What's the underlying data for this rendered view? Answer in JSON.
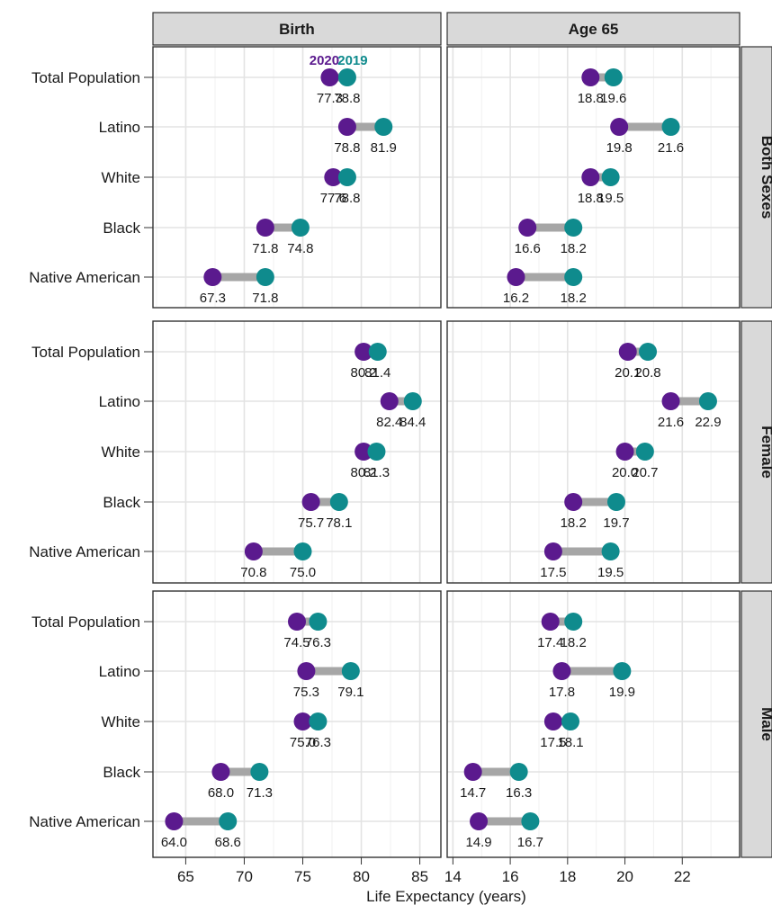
{
  "chart_data": {
    "type": "dumbbell",
    "xlabel": "Life Expectancy (years)",
    "columns": [
      {
        "name": "Birth",
        "xlim": [
          62.2,
          86.8
        ],
        "ticks": [
          65,
          70,
          75,
          80,
          85
        ]
      },
      {
        "name": "Age 65",
        "xlim": [
          13.8,
          24.0
        ],
        "ticks": [
          14,
          16,
          18,
          20,
          22
        ]
      }
    ],
    "rows": [
      "Both Sexes",
      "Female",
      "Male"
    ],
    "categories": [
      "Total Population",
      "Latino",
      "White",
      "Black",
      "Native American"
    ],
    "series": [
      {
        "name": "2020",
        "color": "#5b1a8e"
      },
      {
        "name": "2019",
        "color": "#0f8b8d"
      }
    ],
    "legend_labels": {
      "year2020": "2020",
      "year2019": "2019"
    },
    "connector_color": "#a6a6a6",
    "grid": true,
    "panels": [
      {
        "row": "Both Sexes",
        "column": "Birth",
        "v2020": [
          77.3,
          78.8,
          77.6,
          71.8,
          67.3
        ],
        "v2019": [
          78.8,
          81.9,
          78.8,
          74.8,
          71.8
        ],
        "l2020": [
          "77.3",
          "78.8",
          "77.6",
          "71.8",
          "67.3"
        ],
        "l2019": [
          "78.8",
          "81.9",
          "78.8",
          "74.8",
          "71.8"
        ]
      },
      {
        "row": "Both Sexes",
        "column": "Age 65",
        "v2020": [
          18.8,
          19.8,
          18.8,
          16.6,
          16.2
        ],
        "v2019": [
          19.6,
          21.6,
          19.5,
          18.2,
          18.2
        ],
        "l2020": [
          "18.8",
          "19.8",
          "18.8",
          "16.6",
          "16.2"
        ],
        "l2019": [
          "19.6",
          "21.6",
          "19.5",
          "18.2",
          "18.2"
        ]
      },
      {
        "row": "Female",
        "column": "Birth",
        "v2020": [
          80.2,
          82.4,
          80.2,
          75.7,
          70.8
        ],
        "v2019": [
          81.4,
          84.4,
          81.3,
          78.1,
          75.0
        ],
        "l2020": [
          "80.2",
          "82.4",
          "80.2",
          "75.7",
          "70.8"
        ],
        "l2019": [
          "81.4",
          "84.4",
          "81.3",
          "78.1",
          "75.0"
        ]
      },
      {
        "row": "Female",
        "column": "Age 65",
        "v2020": [
          20.1,
          21.6,
          20.0,
          18.2,
          17.5
        ],
        "v2019": [
          20.8,
          22.9,
          20.7,
          19.7,
          19.5
        ],
        "l2020": [
          "20.1",
          "21.6",
          "20.0",
          "18.2",
          "17.5"
        ],
        "l2019": [
          "20.8",
          "22.9",
          "20.7",
          "19.7",
          "19.5"
        ]
      },
      {
        "row": "Male",
        "column": "Birth",
        "v2020": [
          74.5,
          75.3,
          75.0,
          68.0,
          64.0
        ],
        "v2019": [
          76.3,
          79.1,
          76.3,
          71.3,
          68.6
        ],
        "l2020": [
          "74.5",
          "75.3",
          "75.0",
          "68.0",
          "64.0"
        ],
        "l2019": [
          "76.3",
          "79.1",
          "76.3",
          "71.3",
          "68.6"
        ]
      },
      {
        "row": "Male",
        "column": "Age 65",
        "v2020": [
          17.4,
          17.8,
          17.5,
          14.7,
          14.9
        ],
        "v2019": [
          18.2,
          19.9,
          18.1,
          16.3,
          16.7
        ],
        "l2020": [
          "17.4",
          "17.8",
          "17.5",
          "14.7",
          "14.9"
        ],
        "l2019": [
          "18.2",
          "19.9",
          "18.1",
          "16.3",
          "16.7"
        ]
      }
    ]
  }
}
